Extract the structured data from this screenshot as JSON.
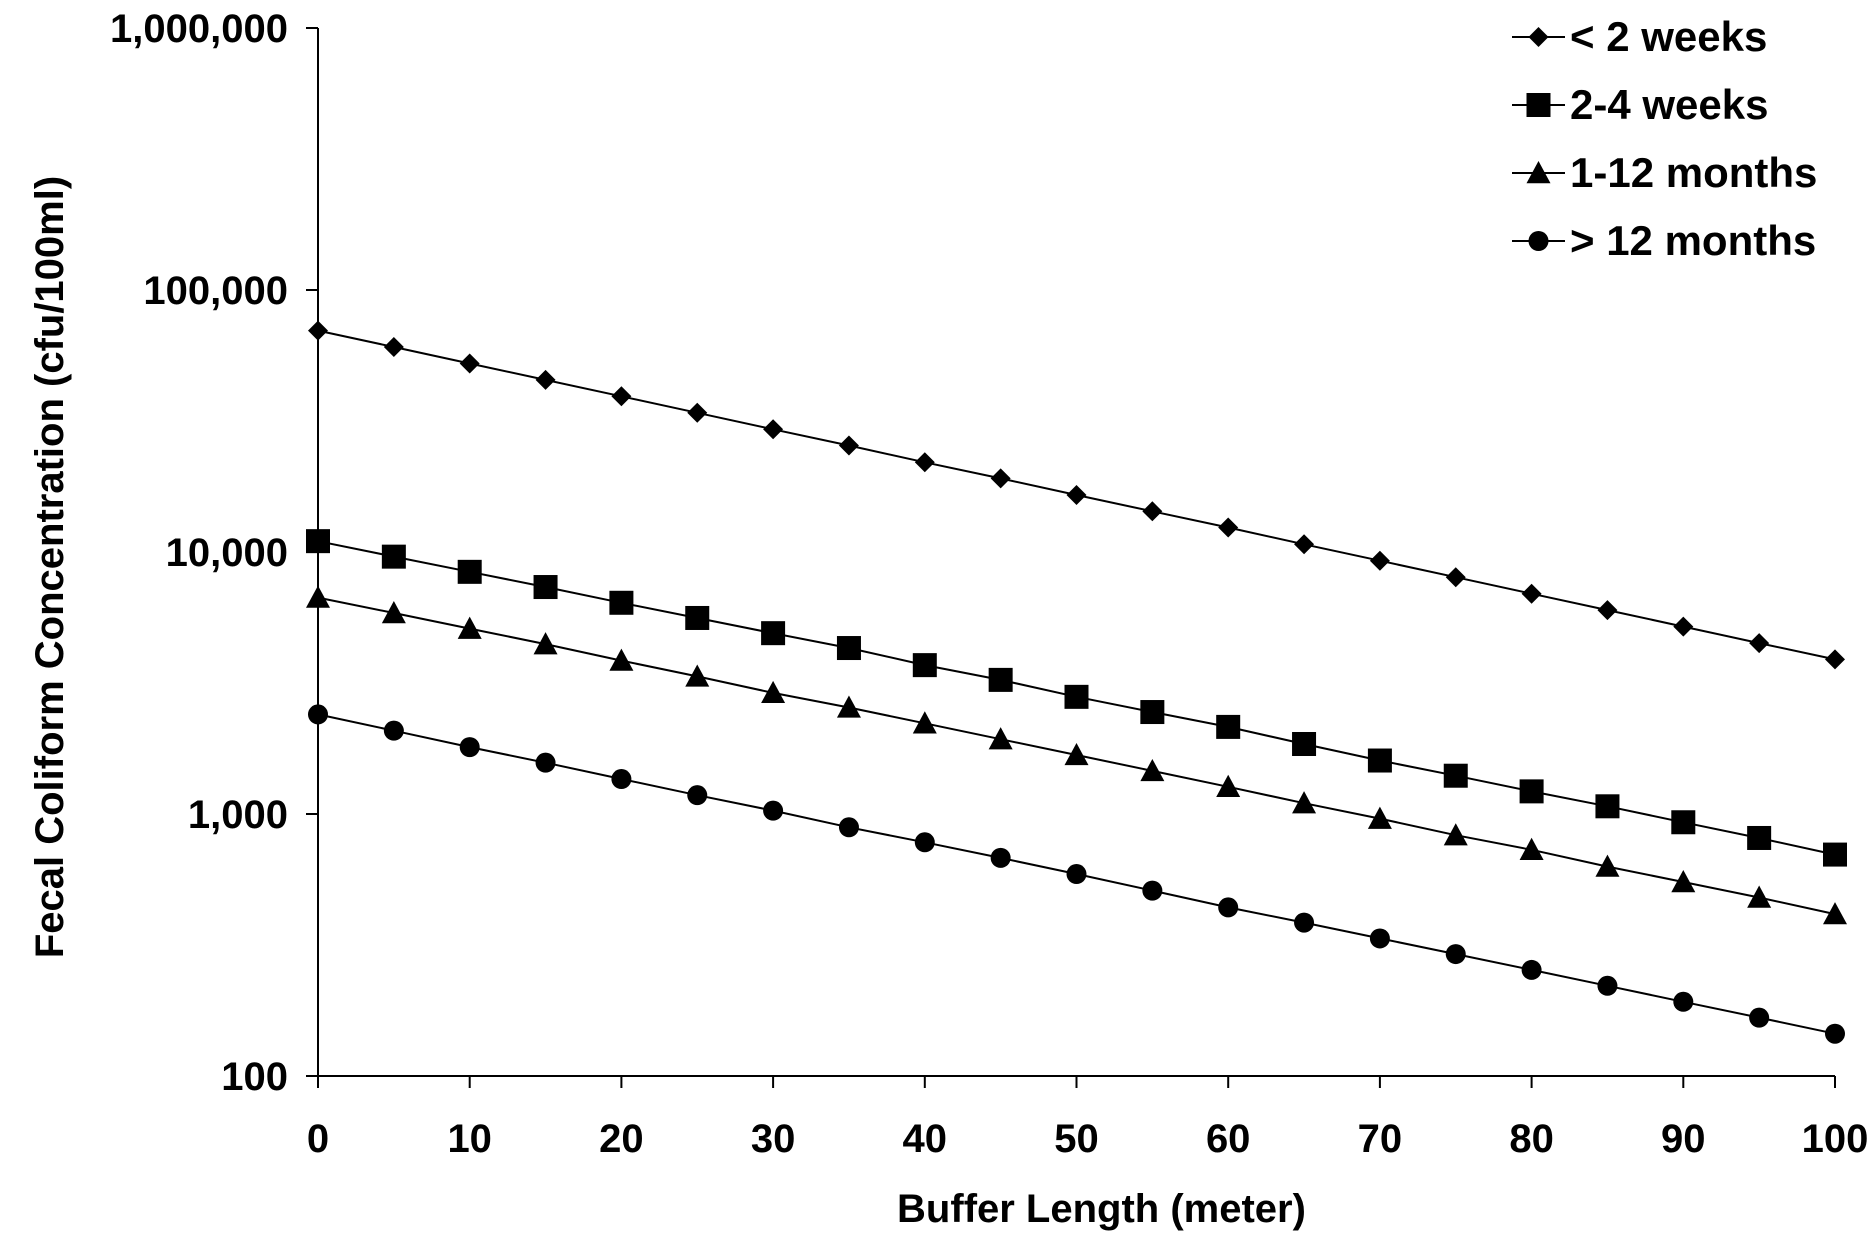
{
  "chart_data": {
    "type": "line",
    "x_label": "Buffer Length (meter)",
    "y_label": "Fecal Coliform Concentration (cfu/100ml)",
    "y_scale": "log",
    "xlim": [
      0,
      100
    ],
    "ylim": [
      100,
      1000000
    ],
    "x_ticks": [
      "0",
      "10",
      "20",
      "30",
      "40",
      "50",
      "60",
      "70",
      "80",
      "90",
      "100"
    ],
    "y_ticks": [
      "100",
      "1,000",
      "10,000",
      "100,000",
      "1,000,000"
    ],
    "grid": false,
    "legend_position": "top-right",
    "x": [
      0,
      5,
      10,
      15,
      20,
      25,
      30,
      35,
      40,
      45,
      50,
      55,
      60,
      65,
      70,
      75,
      80,
      85,
      90,
      95,
      100
    ],
    "series": [
      {
        "name": "< 2 weeks",
        "marker": "diamond",
        "values": [
          70000,
          60600,
          52400,
          45400,
          39300,
          34000,
          29400,
          25500,
          22000,
          19100,
          16500,
          14300,
          12400,
          10700,
          9260,
          8010,
          6930,
          6000,
          5190,
          4490,
          3890
        ]
      },
      {
        "name": "2-4 weeks",
        "marker": "square",
        "values": [
          11000,
          9600,
          8400,
          7350,
          6400,
          5600,
          4900,
          4300,
          3700,
          3250,
          2800,
          2450,
          2150,
          1850,
          1600,
          1400,
          1220,
          1070,
          930,
          810,
          700
        ]
      },
      {
        "name": "1-12 months",
        "marker": "triangle",
        "values": [
          6700,
          5850,
          5100,
          4450,
          3850,
          3350,
          2900,
          2550,
          2220,
          1930,
          1680,
          1460,
          1270,
          1100,
          960,
          830,
          730,
          630,
          550,
          480,
          415
        ]
      },
      {
        "name": "> 12 months",
        "marker": "circle",
        "values": [
          2400,
          2080,
          1800,
          1570,
          1360,
          1180,
          1030,
          890,
          780,
          680,
          590,
          510,
          440,
          385,
          335,
          292,
          254,
          221,
          192,
          167,
          145
        ]
      }
    ]
  }
}
